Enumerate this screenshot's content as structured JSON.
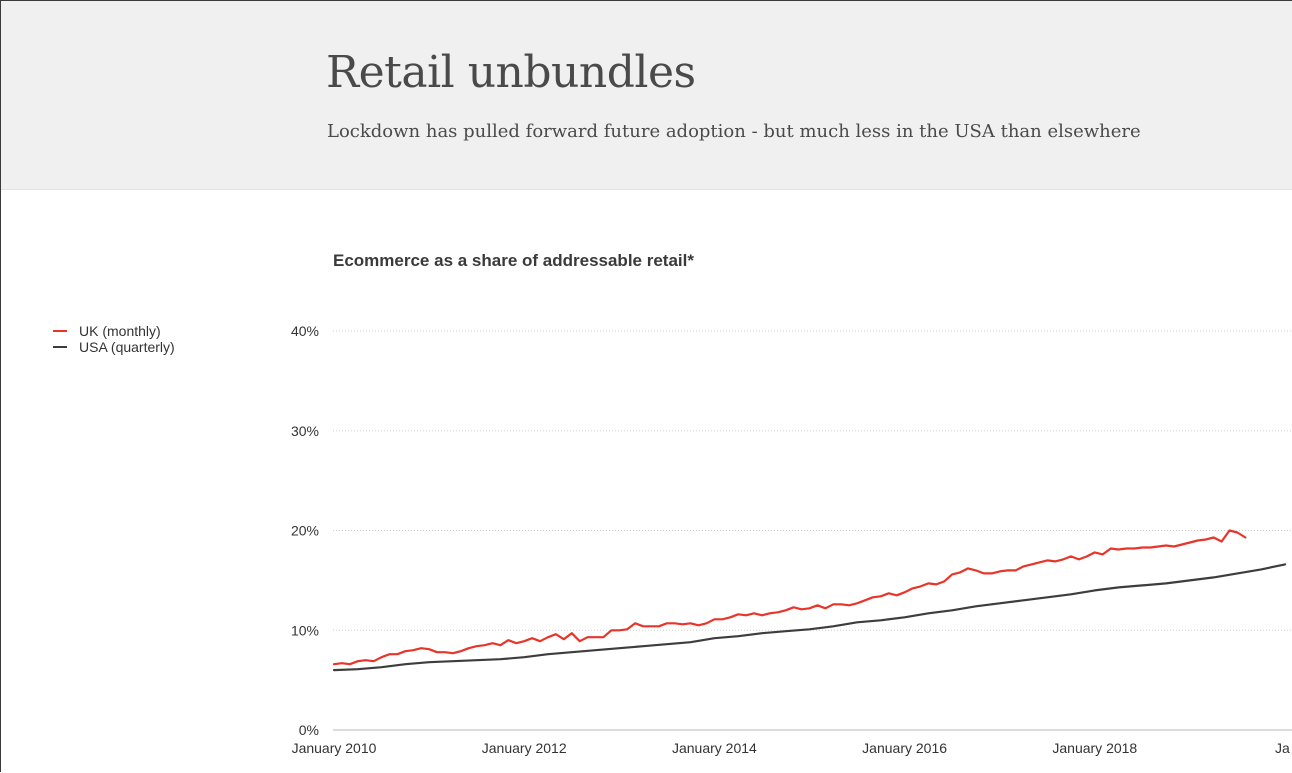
{
  "header": {
    "title": "Retail unbundles",
    "subtitle": "Lockdown has pulled forward future adoption - but much less in the USA than elsewhere"
  },
  "chart_data": {
    "type": "line",
    "title": "Ecommerce as a share of addressable retail*",
    "xlabel": "",
    "ylabel": "",
    "ylim": [
      0,
      0.4
    ],
    "yticks": [
      {
        "value": 0,
        "label": "0%"
      },
      {
        "value": 0.1,
        "label": "10%"
      },
      {
        "value": 0.2,
        "label": "20%"
      },
      {
        "value": 0.3,
        "label": "30%"
      },
      {
        "value": 0.4,
        "label": "40%"
      }
    ],
    "xticks": [
      {
        "value": "2010-01",
        "label": "January 2010"
      },
      {
        "value": "2012-01",
        "label": "January 2012"
      },
      {
        "value": "2014-01",
        "label": "January 2014"
      },
      {
        "value": "2016-01",
        "label": "January 2016"
      },
      {
        "value": "2018-01",
        "label": "January 2018"
      },
      {
        "value": "2020-01",
        "label": "Ja"
      }
    ],
    "grid": true,
    "legend_placement": "left",
    "series": [
      {
        "name": "UK (monthly)",
        "color": "#e8352a",
        "points": [
          [
            "2010-01",
            0.066
          ],
          [
            "2010-02",
            0.067
          ],
          [
            "2010-03",
            0.066
          ],
          [
            "2010-04",
            0.069
          ],
          [
            "2010-05",
            0.07
          ],
          [
            "2010-06",
            0.069
          ],
          [
            "2010-07",
            0.073
          ],
          [
            "2010-08",
            0.076
          ],
          [
            "2010-09",
            0.076
          ],
          [
            "2010-10",
            0.079
          ],
          [
            "2010-11",
            0.08
          ],
          [
            "2010-12",
            0.082
          ],
          [
            "2011-01",
            0.081
          ],
          [
            "2011-02",
            0.078
          ],
          [
            "2011-03",
            0.078
          ],
          [
            "2011-04",
            0.077
          ],
          [
            "2011-05",
            0.079
          ],
          [
            "2011-06",
            0.082
          ],
          [
            "2011-07",
            0.084
          ],
          [
            "2011-08",
            0.085
          ],
          [
            "2011-09",
            0.087
          ],
          [
            "2011-10",
            0.085
          ],
          [
            "2011-11",
            0.09
          ],
          [
            "2011-12",
            0.087
          ],
          [
            "2012-01",
            0.089
          ],
          [
            "2012-02",
            0.092
          ],
          [
            "2012-03",
            0.089
          ],
          [
            "2012-04",
            0.093
          ],
          [
            "2012-05",
            0.096
          ],
          [
            "2012-06",
            0.091
          ],
          [
            "2012-07",
            0.097
          ],
          [
            "2012-08",
            0.089
          ],
          [
            "2012-09",
            0.093
          ],
          [
            "2012-10",
            0.093
          ],
          [
            "2012-11",
            0.093
          ],
          [
            "2012-12",
            0.1
          ],
          [
            "2013-01",
            0.1
          ],
          [
            "2013-02",
            0.101
          ],
          [
            "2013-03",
            0.107
          ],
          [
            "2013-04",
            0.104
          ],
          [
            "2013-05",
            0.104
          ],
          [
            "2013-06",
            0.104
          ],
          [
            "2013-07",
            0.107
          ],
          [
            "2013-08",
            0.107
          ],
          [
            "2013-09",
            0.106
          ],
          [
            "2013-10",
            0.107
          ],
          [
            "2013-11",
            0.105
          ],
          [
            "2013-12",
            0.107
          ],
          [
            "2014-01",
            0.111
          ],
          [
            "2014-02",
            0.111
          ],
          [
            "2014-03",
            0.113
          ],
          [
            "2014-04",
            0.116
          ],
          [
            "2014-05",
            0.115
          ],
          [
            "2014-06",
            0.117
          ],
          [
            "2014-07",
            0.115
          ],
          [
            "2014-08",
            0.117
          ],
          [
            "2014-09",
            0.118
          ],
          [
            "2014-10",
            0.12
          ],
          [
            "2014-11",
            0.123
          ],
          [
            "2014-12",
            0.121
          ],
          [
            "2015-01",
            0.122
          ],
          [
            "2015-02",
            0.125
          ],
          [
            "2015-03",
            0.122
          ],
          [
            "2015-04",
            0.126
          ],
          [
            "2015-05",
            0.126
          ],
          [
            "2015-06",
            0.125
          ],
          [
            "2015-07",
            0.127
          ],
          [
            "2015-08",
            0.13
          ],
          [
            "2015-09",
            0.133
          ],
          [
            "2015-10",
            0.134
          ],
          [
            "2015-11",
            0.137
          ],
          [
            "2015-12",
            0.135
          ],
          [
            "2016-01",
            0.138
          ],
          [
            "2016-02",
            0.142
          ],
          [
            "2016-03",
            0.144
          ],
          [
            "2016-04",
            0.147
          ],
          [
            "2016-05",
            0.146
          ],
          [
            "2016-06",
            0.149
          ],
          [
            "2016-07",
            0.156
          ],
          [
            "2016-08",
            0.158
          ],
          [
            "2016-09",
            0.162
          ],
          [
            "2016-10",
            0.16
          ],
          [
            "2016-11",
            0.157
          ],
          [
            "2016-12",
            0.157
          ],
          [
            "2017-01",
            0.159
          ],
          [
            "2017-02",
            0.16
          ],
          [
            "2017-03",
            0.16
          ],
          [
            "2017-04",
            0.164
          ],
          [
            "2017-05",
            0.166
          ],
          [
            "2017-06",
            0.168
          ],
          [
            "2017-07",
            0.17
          ],
          [
            "2017-08",
            0.169
          ],
          [
            "2017-09",
            0.171
          ],
          [
            "2017-10",
            0.174
          ],
          [
            "2017-11",
            0.171
          ],
          [
            "2017-12",
            0.174
          ],
          [
            "2018-01",
            0.178
          ],
          [
            "2018-02",
            0.176
          ],
          [
            "2018-03",
            0.182
          ],
          [
            "2018-04",
            0.181
          ],
          [
            "2018-05",
            0.182
          ],
          [
            "2018-06",
            0.182
          ],
          [
            "2018-07",
            0.183
          ],
          [
            "2018-08",
            0.183
          ],
          [
            "2018-09",
            0.184
          ],
          [
            "2018-10",
            0.185
          ],
          [
            "2018-11",
            0.184
          ],
          [
            "2018-12",
            0.186
          ],
          [
            "2019-01",
            0.188
          ],
          [
            "2019-02",
            0.19
          ],
          [
            "2019-03",
            0.191
          ],
          [
            "2019-04",
            0.193
          ],
          [
            "2019-05",
            0.189
          ],
          [
            "2019-06",
            0.2
          ],
          [
            "2019-07",
            0.198
          ],
          [
            "2019-08",
            0.193
          ]
        ]
      },
      {
        "name": "USA (quarterly)",
        "color": "#3d3d3d",
        "points": [
          [
            "2010-01",
            0.06
          ],
          [
            "2010-04",
            0.061
          ],
          [
            "2010-07",
            0.063
          ],
          [
            "2010-10",
            0.066
          ],
          [
            "2011-01",
            0.068
          ],
          [
            "2011-04",
            0.069
          ],
          [
            "2011-07",
            0.07
          ],
          [
            "2011-10",
            0.071
          ],
          [
            "2012-01",
            0.073
          ],
          [
            "2012-04",
            0.076
          ],
          [
            "2012-07",
            0.078
          ],
          [
            "2012-10",
            0.08
          ],
          [
            "2013-01",
            0.082
          ],
          [
            "2013-04",
            0.084
          ],
          [
            "2013-07",
            0.086
          ],
          [
            "2013-10",
            0.088
          ],
          [
            "2014-01",
            0.092
          ],
          [
            "2014-04",
            0.094
          ],
          [
            "2014-07",
            0.097
          ],
          [
            "2014-10",
            0.099
          ],
          [
            "2015-01",
            0.101
          ],
          [
            "2015-04",
            0.104
          ],
          [
            "2015-07",
            0.108
          ],
          [
            "2015-10",
            0.11
          ],
          [
            "2016-01",
            0.113
          ],
          [
            "2016-04",
            0.117
          ],
          [
            "2016-07",
            0.12
          ],
          [
            "2016-10",
            0.124
          ],
          [
            "2017-01",
            0.127
          ],
          [
            "2017-04",
            0.13
          ],
          [
            "2017-07",
            0.133
          ],
          [
            "2017-10",
            0.136
          ],
          [
            "2018-01",
            0.14
          ],
          [
            "2018-04",
            0.143
          ],
          [
            "2018-07",
            0.145
          ],
          [
            "2018-10",
            0.147
          ],
          [
            "2019-01",
            0.15
          ],
          [
            "2019-04",
            0.153
          ],
          [
            "2019-07",
            0.157
          ],
          [
            "2019-10",
            0.161
          ],
          [
            "2020-01",
            0.166
          ]
        ]
      }
    ]
  }
}
